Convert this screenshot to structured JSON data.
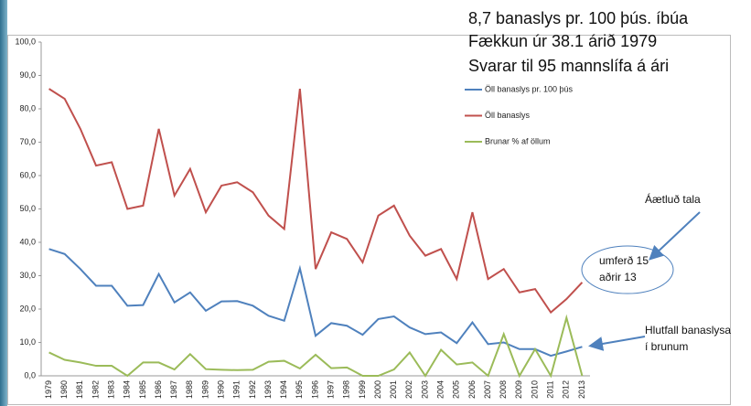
{
  "chart_data": {
    "type": "line",
    "categories": [
      "1979",
      "1980",
      "1981",
      "1982",
      "1983",
      "1984",
      "1985",
      "1986",
      "1987",
      "1988",
      "1989",
      "1990",
      "1991",
      "1992",
      "1993",
      "1994",
      "1995",
      "1996",
      "1997",
      "1998",
      "1999",
      "2000",
      "2001",
      "2002",
      "2003",
      "2004",
      "2005",
      "2006",
      "2007",
      "2008",
      "2009",
      "2010",
      "2011",
      "2012",
      "2013"
    ],
    "series": [
      {
        "name": "Öll banaslys pr. 100 þús",
        "color": "#4f81bd",
        "values": [
          38,
          36.5,
          32,
          27,
          27,
          21,
          21.2,
          30.5,
          22,
          25,
          19.5,
          22.3,
          22.4,
          21,
          18,
          16.5,
          32.2,
          12,
          15.8,
          15,
          12.3,
          17,
          17.8,
          14.5,
          12.5,
          13,
          9.8,
          16,
          9.5,
          10,
          8,
          8,
          6,
          7.3,
          8.7
        ]
      },
      {
        "name": "Öll banaslys",
        "color": "#c0504d",
        "values": [
          86,
          83,
          74,
          63,
          64,
          50,
          51,
          74,
          54,
          62,
          49,
          57,
          58,
          55,
          48,
          44,
          86,
          32,
          43,
          41,
          34,
          48,
          51,
          42,
          36,
          38,
          29,
          49,
          29,
          32,
          25,
          26,
          19,
          23,
          28
        ]
      },
      {
        "name": "Brunar % af öllum",
        "color": "#9bbb59",
        "values": [
          7,
          4.8,
          4,
          3,
          3,
          0,
          4,
          4,
          1.9,
          6.5,
          2,
          1.8,
          1.7,
          1.8,
          4.2,
          4.5,
          2.2,
          6.3,
          2.3,
          2.5,
          0,
          0,
          1.9,
          7,
          0,
          7.8,
          3.4,
          4,
          0,
          12.5,
          0,
          8,
          0,
          17.4,
          0
        ]
      }
    ],
    "ylim": [
      0,
      100
    ],
    "yticks": [
      {
        "value": 0,
        "label": "0,0"
      },
      {
        "value": 10,
        "label": "10,0"
      },
      {
        "value": 20,
        "label": "20,0"
      },
      {
        "value": 30,
        "label": "30,0"
      },
      {
        "value": 40,
        "label": "40,0"
      },
      {
        "value": 50,
        "label": "50,0"
      },
      {
        "value": 60,
        "label": "60,0"
      },
      {
        "value": 70,
        "label": "70,0"
      },
      {
        "value": 80,
        "label": "80,0"
      },
      {
        "value": 90,
        "label": "90,0"
      },
      {
        "value": 100,
        "label": "100,0"
      }
    ],
    "grid": false,
    "annotations": [
      "8,7 banaslys pr. 100 þús. íbúa",
      "Fækkun úr 38.1 árið 1979",
      "Svarar til 95 mannslífa á ári",
      "Áætluð tala",
      "umferð 15",
      "aðrir 13",
      "Hlutfall banaslysa",
      "í brunum"
    ]
  }
}
